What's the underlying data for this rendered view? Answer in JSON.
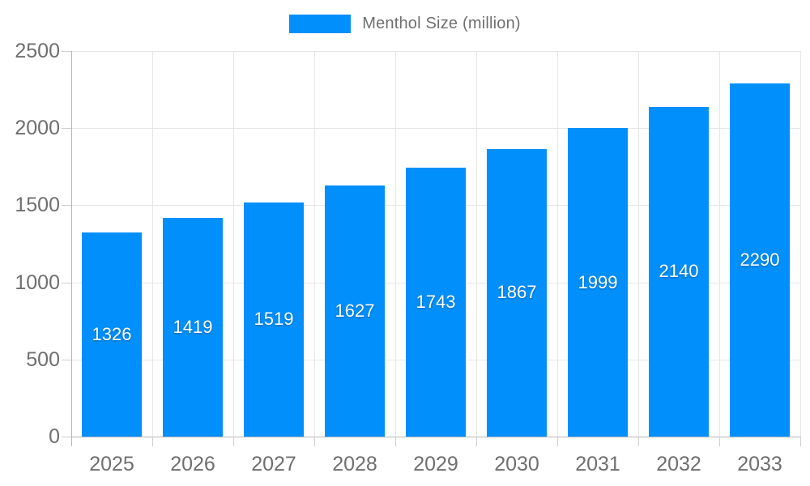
{
  "chart_data": {
    "type": "bar",
    "title": "",
    "legend_position": "top",
    "legend": [
      {
        "label": "Menthol Size (million)",
        "color": "#008FFB"
      }
    ],
    "categories": [
      "2025",
      "2026",
      "2027",
      "2028",
      "2029",
      "2030",
      "2031",
      "2032",
      "2033"
    ],
    "series": [
      {
        "name": "Menthol Size (million)",
        "values": [
          1326,
          1419,
          1519,
          1627,
          1743,
          1867,
          1999,
          2140,
          2290
        ]
      }
    ],
    "xlabel": "",
    "ylabel": "",
    "ylim": [
      0,
      2500
    ],
    "yticks": [
      0,
      500,
      1000,
      1500,
      2000,
      2500
    ],
    "grid": "both",
    "value_labels": "centered-inside-bars"
  },
  "colors": {
    "bar": "#008FFB",
    "value_label": "#ffffff",
    "axis_text": "#6f6f6f",
    "grid_line": "#e6e6e6",
    "axis_line": "#b5b5b5",
    "tick_line": "#cfcfcf",
    "background": "#ffffff"
  }
}
